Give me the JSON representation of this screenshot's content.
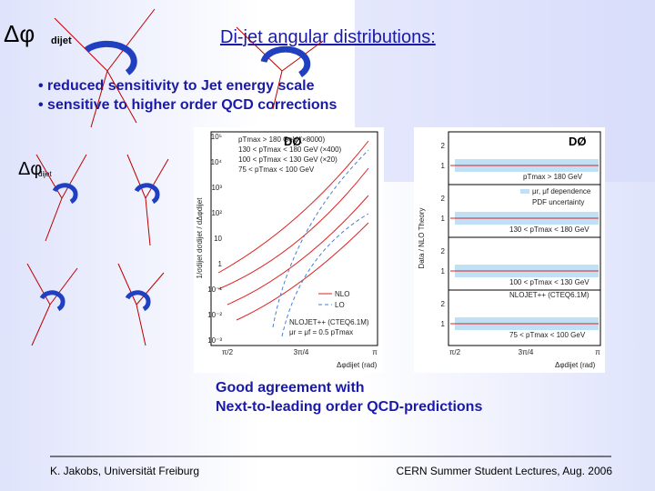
{
  "title": "Di-jet angular distributions:",
  "bullets": [
    "• reduced sensitivity to Jet energy scale",
    "• sensitive to higher order QCD corrections"
  ],
  "diagram_labels": {
    "top_symbol": "Δφ",
    "top_sub": "dijet",
    "left_symbol": "Δφ",
    "left_sub": "dijet"
  },
  "left_plot": {
    "experiment": "DØ",
    "y_label": "1/σdijet dσdijet / dΔφdijet",
    "y_ticks": [
      "10⁵",
      "10⁴",
      "10³",
      "10²",
      "10",
      "1",
      "10⁻¹",
      "10⁻²",
      "10⁻³"
    ],
    "legend": [
      "pTmax > 180 GeV (×8000)",
      "130 < pTmax < 180 GeV (×400)",
      "100 < pTmax < 130 GeV (×20)",
      "75 < pTmax < 100 GeV"
    ],
    "theory": [
      "NLO",
      "LO",
      "NLOJET++ (CTEQ6.1M)",
      "μr = μf = 0.5 pTmax"
    ],
    "x_ticks": [
      "π/2",
      "3π/4",
      "π"
    ],
    "x_label": "Δφdijet (rad)"
  },
  "right_plot": {
    "experiment": "DØ",
    "y_label": "Data / NLO Theory",
    "y_ticks": [
      "2",
      "1"
    ],
    "panels": [
      "pTmax > 180 GeV",
      "130 < pTmax < 180 GeV",
      "100 < pTmax < 130 GeV",
      "75 < pTmax < 100 GeV"
    ],
    "legend": [
      "μr, μf dependence",
      "PDF uncertainty",
      "NLOJET++ (CTEQ6.1M)"
    ],
    "x_ticks": [
      "π/2",
      "3π/4",
      "π"
    ],
    "x_label": "Δφdijet (rad)"
  },
  "caption": [
    "Good agreement with",
    "Next-to-leading order QCD-predictions"
  ],
  "footer": {
    "left": "K. Jakobs, Universität Freiburg",
    "right": "CERN Summer Student Lectures,  Aug.  2006"
  }
}
